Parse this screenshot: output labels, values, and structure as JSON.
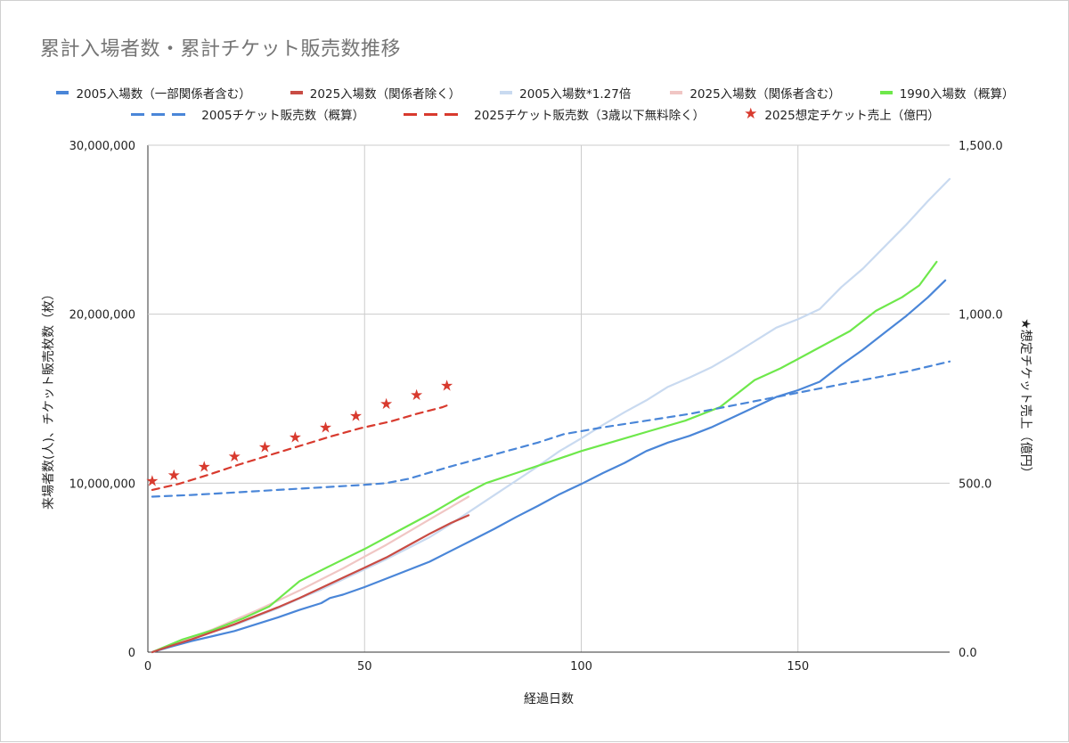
{
  "chart_data": {
    "type": "line",
    "title": "累計入場者数・累計チケット販売数推移",
    "xlabel": "経過日数",
    "ylabel": "来場者数(人)、チケット販売枚数（枚）",
    "ylabel_right": "★想定チケット売上（億円）",
    "xlim": [
      0,
      185
    ],
    "ylim": [
      0,
      30000000
    ],
    "ylim_right": [
      0,
      1500
    ],
    "x_ticks": [
      "0",
      "50",
      "100",
      "150"
    ],
    "y_ticks": [
      "0",
      "10,000,000",
      "20,000,000",
      "30,000,000"
    ],
    "y_right_ticks": [
      "0.0",
      "500.0",
      "1,000.0",
      "1,500.0"
    ],
    "grid": true,
    "legend_position": "top",
    "series": [
      {
        "name": "2005入場数（一部関係者含む）",
        "color": "#4a86d8",
        "style": "solid",
        "axis": "left",
        "points": [
          [
            1,
            0
          ],
          [
            5,
            300000
          ],
          [
            10,
            650000
          ],
          [
            15,
            950000
          ],
          [
            20,
            1250000
          ],
          [
            25,
            1650000
          ],
          [
            30,
            2050000
          ],
          [
            35,
            2500000
          ],
          [
            40,
            2900000
          ],
          [
            42,
            3200000
          ],
          [
            45,
            3400000
          ],
          [
            50,
            3850000
          ],
          [
            55,
            4350000
          ],
          [
            60,
            4850000
          ],
          [
            65,
            5350000
          ],
          [
            70,
            6000000
          ],
          [
            75,
            6650000
          ],
          [
            80,
            7300000
          ],
          [
            85,
            8000000
          ],
          [
            90,
            8650000
          ],
          [
            95,
            9350000
          ],
          [
            100,
            9950000
          ],
          [
            105,
            10600000
          ],
          [
            110,
            11200000
          ],
          [
            115,
            11900000
          ],
          [
            120,
            12400000
          ],
          [
            125,
            12800000
          ],
          [
            130,
            13300000
          ],
          [
            135,
            13900000
          ],
          [
            140,
            14500000
          ],
          [
            145,
            15100000
          ],
          [
            150,
            15500000
          ],
          [
            155,
            16000000
          ],
          [
            160,
            17000000
          ],
          [
            165,
            17900000
          ],
          [
            170,
            18900000
          ],
          [
            175,
            19900000
          ],
          [
            180,
            21000000
          ],
          [
            184,
            22000000
          ]
        ]
      },
      {
        "name": "2025入場数（関係者除く）",
        "color": "#c94c44",
        "style": "solid",
        "axis": "left",
        "points": [
          [
            1,
            0
          ],
          [
            5,
            350000
          ],
          [
            10,
            750000
          ],
          [
            15,
            1200000
          ],
          [
            20,
            1650000
          ],
          [
            25,
            2150000
          ],
          [
            30,
            2650000
          ],
          [
            35,
            3200000
          ],
          [
            40,
            3800000
          ],
          [
            45,
            4400000
          ],
          [
            50,
            5000000
          ],
          [
            55,
            5600000
          ],
          [
            60,
            6300000
          ],
          [
            65,
            7000000
          ],
          [
            70,
            7650000
          ],
          [
            74,
            8100000
          ]
        ]
      },
      {
        "name": "2005入場数*1.27倍",
        "color": "#c9daf0",
        "style": "solid",
        "axis": "left",
        "points": [
          [
            1,
            0
          ],
          [
            5,
            380000
          ],
          [
            10,
            830000
          ],
          [
            15,
            1200000
          ],
          [
            20,
            1600000
          ],
          [
            25,
            2100000
          ],
          [
            30,
            2600000
          ],
          [
            35,
            3180000
          ],
          [
            40,
            3700000
          ],
          [
            45,
            4300000
          ],
          [
            50,
            4900000
          ],
          [
            55,
            5500000
          ],
          [
            60,
            6150000
          ],
          [
            65,
            6800000
          ],
          [
            70,
            7600000
          ],
          [
            75,
            8450000
          ],
          [
            80,
            9300000
          ],
          [
            85,
            10150000
          ],
          [
            90,
            11000000
          ],
          [
            95,
            11900000
          ],
          [
            100,
            12650000
          ],
          [
            105,
            13450000
          ],
          [
            110,
            14200000
          ],
          [
            115,
            14900000
          ],
          [
            120,
            15700000
          ],
          [
            125,
            16250000
          ],
          [
            130,
            16850000
          ],
          [
            135,
            17600000
          ],
          [
            140,
            18400000
          ],
          [
            145,
            19200000
          ],
          [
            150,
            19700000
          ],
          [
            155,
            20300000
          ],
          [
            160,
            21600000
          ],
          [
            165,
            22700000
          ],
          [
            170,
            24000000
          ],
          [
            175,
            25300000
          ],
          [
            180,
            26700000
          ],
          [
            185,
            28000000
          ]
        ]
      },
      {
        "name": "2025入場数（関係者含む）",
        "color": "#f0c6c4",
        "style": "solid",
        "axis": "left",
        "points": [
          [
            1,
            0
          ],
          [
            5,
            400000
          ],
          [
            10,
            850000
          ],
          [
            15,
            1350000
          ],
          [
            20,
            1900000
          ],
          [
            25,
            2450000
          ],
          [
            30,
            3050000
          ],
          [
            35,
            3650000
          ],
          [
            40,
            4300000
          ],
          [
            45,
            4950000
          ],
          [
            50,
            5650000
          ],
          [
            55,
            6350000
          ],
          [
            60,
            7100000
          ],
          [
            65,
            7850000
          ],
          [
            70,
            8600000
          ],
          [
            74,
            9200000
          ]
        ]
      },
      {
        "name": "1990入場数（概算）",
        "color": "#6ee84b",
        "style": "solid",
        "axis": "left",
        "points": [
          [
            1,
            0
          ],
          [
            8,
            750000
          ],
          [
            15,
            1300000
          ],
          [
            22,
            2000000
          ],
          [
            28,
            2700000
          ],
          [
            35,
            4200000
          ],
          [
            42,
            5100000
          ],
          [
            50,
            6100000
          ],
          [
            58,
            7200000
          ],
          [
            66,
            8300000
          ],
          [
            72,
            9200000
          ],
          [
            78,
            10000000
          ],
          [
            85,
            10600000
          ],
          [
            92,
            11200000
          ],
          [
            100,
            11900000
          ],
          [
            108,
            12500000
          ],
          [
            116,
            13100000
          ],
          [
            124,
            13700000
          ],
          [
            132,
            14500000
          ],
          [
            140,
            16100000
          ],
          [
            146,
            16800000
          ],
          [
            154,
            17900000
          ],
          [
            162,
            19000000
          ],
          [
            168,
            20200000
          ],
          [
            174,
            21000000
          ],
          [
            178,
            21700000
          ],
          [
            182,
            23100000
          ]
        ]
      },
      {
        "name": "2005チケット販売数（概算）",
        "color": "#4a86d8",
        "style": "dashed",
        "axis": "left",
        "points": [
          [
            1,
            9200000
          ],
          [
            10,
            9300000
          ],
          [
            20,
            9450000
          ],
          [
            30,
            9600000
          ],
          [
            40,
            9750000
          ],
          [
            50,
            9900000
          ],
          [
            55,
            10000000
          ],
          [
            60,
            10250000
          ],
          [
            70,
            11000000
          ],
          [
            80,
            11700000
          ],
          [
            90,
            12400000
          ],
          [
            96,
            12900000
          ],
          [
            105,
            13300000
          ],
          [
            115,
            13700000
          ],
          [
            125,
            14100000
          ],
          [
            135,
            14600000
          ],
          [
            145,
            15100000
          ],
          [
            155,
            15600000
          ],
          [
            165,
            16100000
          ],
          [
            175,
            16600000
          ],
          [
            185,
            17200000
          ]
        ]
      },
      {
        "name": "2025チケット販売数（3歳以下無料除く）",
        "color": "#d83a2e",
        "style": "dashed",
        "axis": "left",
        "points": [
          [
            1,
            9600000
          ],
          [
            7,
            9950000
          ],
          [
            14,
            10500000
          ],
          [
            21,
            11100000
          ],
          [
            28,
            11650000
          ],
          [
            35,
            12200000
          ],
          [
            42,
            12750000
          ],
          [
            49,
            13250000
          ],
          [
            56,
            13650000
          ],
          [
            62,
            14100000
          ],
          [
            68,
            14500000
          ],
          [
            69,
            14600000
          ]
        ]
      },
      {
        "name": "2025想定チケット売上（億円）",
        "color": "#d83a2e",
        "style": "star",
        "axis": "right",
        "points": [
          [
            1,
            508
          ],
          [
            6,
            525
          ],
          [
            13,
            550
          ],
          [
            20,
            580
          ],
          [
            27,
            608
          ],
          [
            34,
            636
          ],
          [
            41,
            666
          ],
          [
            48,
            700
          ],
          [
            55,
            735
          ],
          [
            62,
            762
          ],
          [
            69,
            790
          ]
        ]
      }
    ]
  }
}
